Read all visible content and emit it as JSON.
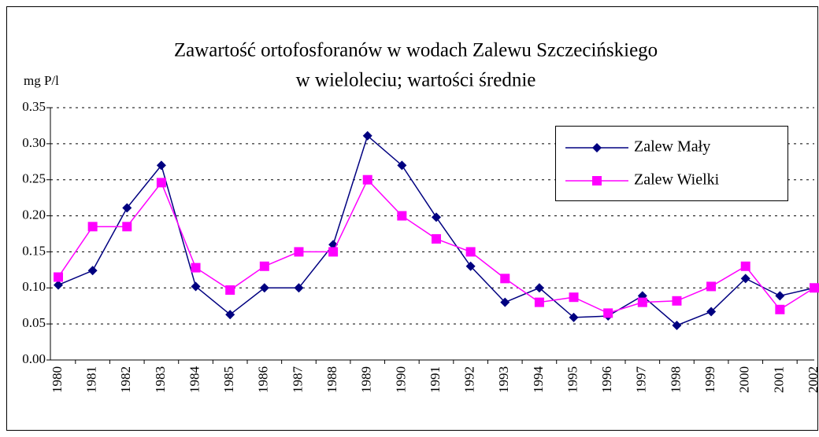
{
  "chart_data": {
    "type": "line",
    "title": [
      "Zawartość ortofosforanów w wodach Zalewu Szczecińskiego",
      "w wieloleciu; wartości średnie"
    ],
    "y_label": "mg P/l",
    "categories": [
      "1980",
      "1981",
      "1982",
      "1983",
      "1984",
      "1985",
      "1986",
      "1987",
      "1988",
      "1989",
      "1990",
      "1991",
      "1992",
      "1993",
      "1994",
      "1995",
      "1996",
      "1997",
      "1998",
      "1999",
      "2000",
      "2001",
      "2002"
    ],
    "series": [
      {
        "name": "Zalew Mały",
        "color": "#000080",
        "marker": "diamond",
        "values": [
          0.104,
          0.124,
          0.211,
          0.27,
          0.102,
          0.063,
          0.1,
          0.1,
          0.16,
          0.311,
          0.27,
          0.198,
          0.13,
          0.08,
          0.1,
          0.059,
          0.061,
          0.089,
          0.048,
          0.067,
          0.113,
          0.089,
          0.1
        ]
      },
      {
        "name": "Zalew Wielki",
        "color": "#ff00ff",
        "marker": "square",
        "values": [
          0.115,
          0.185,
          0.185,
          0.246,
          0.128,
          0.097,
          0.13,
          0.15,
          0.15,
          0.25,
          0.2,
          0.168,
          0.15,
          0.113,
          0.08,
          0.087,
          0.065,
          0.08,
          0.082,
          0.102,
          0.13,
          0.07,
          0.1
        ]
      }
    ],
    "ylim": [
      0,
      0.35
    ],
    "yticks": [
      {
        "value": 0,
        "label": "0.00"
      },
      0.05,
      {
        "value": 0.1,
        "label": "0.10"
      },
      0.15,
      {
        "value": 0.2,
        "label": "0.20"
      },
      0.25,
      {
        "value": 0.3,
        "label": "0.30"
      },
      0.35
    ],
    "grid": true,
    "legend": "top-right"
  }
}
